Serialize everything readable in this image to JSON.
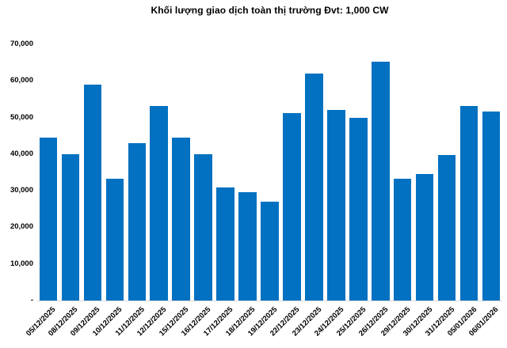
{
  "title": "Khối lượng giao dịch toàn thị trường Đvt: 1,000 CW",
  "colors": {
    "bar": "#0271C1",
    "axis_line": "#D9D9D9",
    "text": "#000000",
    "background": "#FFFFFF"
  },
  "chart_data": {
    "type": "bar",
    "title": "Khối lượng giao dịch toàn thị trường Đvt: 1,000 CW",
    "unit": "1,000 CW",
    "categories": [
      "05/12/2025",
      "08/12/2025",
      "09/12/2025",
      "10/12/2025",
      "11/12/2025",
      "12/12/2025",
      "15/12/2025",
      "16/12/2025",
      "17/12/2025",
      "18/12/2025",
      "19/12/2025",
      "22/12/2025",
      "23/12/2025",
      "24/12/2025",
      "25/12/2025",
      "26/12/2025",
      "29/12/2025",
      "30/12/2025",
      "31/12/2025",
      "05/01/2026",
      "06/01/2026"
    ],
    "values": [
      44400,
      39900,
      59000,
      33300,
      42900,
      53200,
      44600,
      40000,
      31000,
      29700,
      27000,
      51300,
      62000,
      52000,
      50000,
      65300,
      33200,
      34500,
      39800,
      53100,
      51700
    ],
    "xlabel": "",
    "ylabel": "",
    "ylim": [
      0,
      70000
    ],
    "y_tick_interval": 10000,
    "y_tick_labels": [
      "-",
      "10,000",
      "20,000",
      "30,000",
      "40,000",
      "50,000",
      "60,000",
      "70,000"
    ],
    "grid": false,
    "legend": false,
    "bar_color": "#0271C1"
  }
}
